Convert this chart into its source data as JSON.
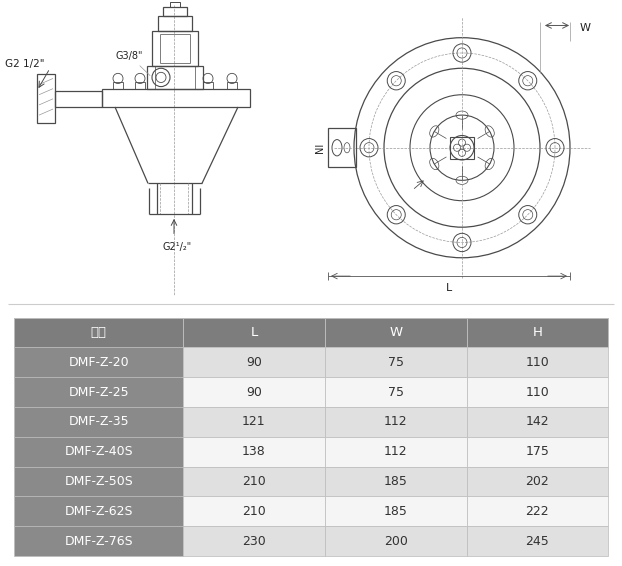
{
  "fig_width": 6.22,
  "fig_height": 5.66,
  "dpi": 100,
  "header_row": [
    "型号",
    "L",
    "W",
    "H"
  ],
  "rows": [
    [
      "DMF-Z-20",
      "90",
      "75",
      "110"
    ],
    [
      "DMF-Z-25",
      "90",
      "75",
      "110"
    ],
    [
      "DMF-Z-35",
      "121",
      "112",
      "142"
    ],
    [
      "DMF-Z-40S",
      "138",
      "112",
      "175"
    ],
    [
      "DMF-Z-50S",
      "210",
      "185",
      "202"
    ],
    [
      "DMF-Z-62S",
      "210",
      "185",
      "222"
    ],
    [
      "DMF-Z-76S",
      "230",
      "200",
      "245"
    ]
  ],
  "header_bg": "#7d7d7d",
  "header_text_color": "#ffffff",
  "col1_bg": "#8a8a8a",
  "col1_text": "#ffffff",
  "row_odd_bg": "#e0e0e0",
  "row_even_bg": "#f5f5f5",
  "data_text_color": "#333333",
  "border_color": "#bbbbbb",
  "line_color": "#4a4a4a",
  "dim_color": "#555555",
  "dash_color": "#999999",
  "label_color": "#222222",
  "label_G3_8": "G3/8\"",
  "label_G2_5": "G2 1/2\"",
  "label_G2_5b": "G2¹/₂\"",
  "label_W": "W",
  "label_L": "L",
  "label_NI": "NI"
}
